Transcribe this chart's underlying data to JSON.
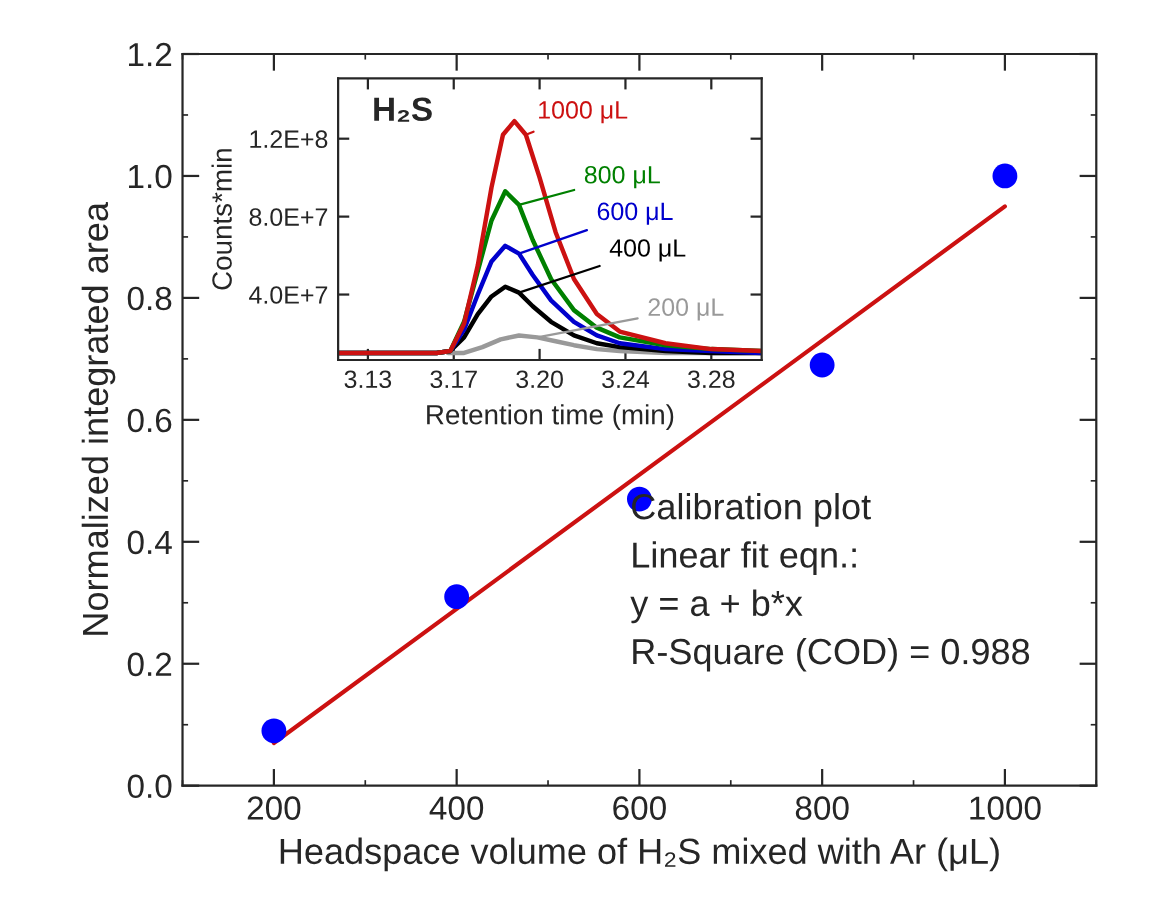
{
  "chart_data": [
    {
      "type": "scatter",
      "xlabel": "Headspace volume of H₂S mixed with Ar (μL)",
      "ylabel": "Normalized integrated area",
      "xlim": [
        100,
        1100
      ],
      "xticks": [
        200,
        400,
        600,
        800,
        1000
      ],
      "ylim": [
        0,
        1.2
      ],
      "yticks": [
        {
          "value": 0,
          "label": "0.0"
        },
        0.2,
        0.4,
        0.6,
        0.8,
        {
          "value": 1,
          "label": "1.0"
        },
        1.2
      ],
      "grid": false,
      "annotations": [
        "Calibration plot",
        "Linear fit eqn.:",
        "y = a + b*x",
        "R-Square (COD) = 0.988"
      ],
      "series": [
        {
          "type": "scatter",
          "color": "#0000ff",
          "marker": "circle",
          "x": [
            200,
            400,
            600,
            800,
            1000
          ],
          "values": [
            0.09,
            0.31,
            0.47,
            0.69,
            1.0
          ]
        },
        {
          "type": "line",
          "color": "#cc1111",
          "line_style": "solid",
          "x": [
            200,
            1000
          ],
          "values": [
            0.07,
            0.95
          ]
        }
      ]
    },
    {
      "type": "line",
      "xlabel": "Retention time (min)",
      "ylabel": "Counts*min",
      "annotations": [
        "H₂S"
      ],
      "xlim": [
        3.117,
        3.302
      ],
      "xticks": [
        {
          "value": 3.13,
          "label": "3.13"
        },
        {
          "value": 3.1675,
          "label": "3.17"
        },
        {
          "value": 3.205,
          "label": "3.20"
        },
        {
          "value": 3.2425,
          "label": "3.24"
        },
        {
          "value": 3.28,
          "label": "3.28"
        }
      ],
      "ylim": [
        6400000,
        151000000
      ],
      "yticks": [
        {
          "value": 40000000,
          "label": "4.0E+7"
        },
        {
          "value": 80000000,
          "label": "8.0E+7"
        },
        {
          "value": 120000000,
          "label": "1.2E+8"
        }
      ],
      "grid": false,
      "series": [
        {
          "name": "1000 μL",
          "color": "#cc1111",
          "x": [
            3.117,
            3.16,
            3.166,
            3.172,
            3.178,
            3.184,
            3.189,
            3.194,
            3.199,
            3.205,
            3.212,
            3.22,
            3.23,
            3.24,
            3.26,
            3.28,
            3.302
          ],
          "values": [
            10000000,
            10000000,
            11000000,
            25000000,
            55000000,
            95000000,
            122000000,
            129000000,
            122000000,
            100000000,
            72000000,
            48000000,
            30000000,
            21000000,
            15000000,
            12000000,
            11000000
          ]
        },
        {
          "name": "800 μL",
          "color": "#008000",
          "x": [
            3.117,
            3.16,
            3.166,
            3.172,
            3.178,
            3.184,
            3.19,
            3.196,
            3.202,
            3.21,
            3.22,
            3.23,
            3.24,
            3.26,
            3.28,
            3.302
          ],
          "values": [
            10000000,
            10000000,
            11000000,
            26000000,
            52000000,
            78000000,
            93000000,
            86000000,
            68000000,
            48000000,
            32000000,
            23000000,
            18000000,
            14000000,
            12000000,
            11000000
          ]
        },
        {
          "name": "600 μL",
          "color": "#0000cc",
          "x": [
            3.117,
            3.16,
            3.166,
            3.172,
            3.178,
            3.184,
            3.19,
            3.196,
            3.202,
            3.21,
            3.22,
            3.23,
            3.24,
            3.26,
            3.28,
            3.302
          ],
          "values": [
            10000000,
            10000000,
            11000000,
            22000000,
            40000000,
            57000000,
            65000000,
            61000000,
            50000000,
            37000000,
            26000000,
            19000000,
            15000000,
            12000000,
            11000000,
            10000000
          ]
        },
        {
          "name": "400 μL",
          "color": "#000000",
          "x": [
            3.117,
            3.16,
            3.166,
            3.172,
            3.178,
            3.184,
            3.19,
            3.196,
            3.202,
            3.21,
            3.22,
            3.23,
            3.24,
            3.26,
            3.28,
            3.302
          ],
          "values": [
            10000000,
            10000000,
            11000000,
            18000000,
            30000000,
            39000000,
            44000000,
            41000000,
            34000000,
            26000000,
            19000000,
            15000000,
            13000000,
            11000000,
            10000000,
            10000000
          ]
        },
        {
          "name": "200 μL",
          "color": "#999999",
          "x": [
            3.165,
            3.172,
            3.18,
            3.188,
            3.196,
            3.204,
            3.212,
            3.22,
            3.23,
            3.24,
            3.26,
            3.28,
            3.302
          ],
          "values": [
            10000000,
            10000000,
            13000000,
            17000000,
            19000000,
            18000000,
            16000000,
            14000000,
            12000000,
            11000000,
            10000000,
            10000000,
            10000000
          ]
        }
      ]
    }
  ]
}
